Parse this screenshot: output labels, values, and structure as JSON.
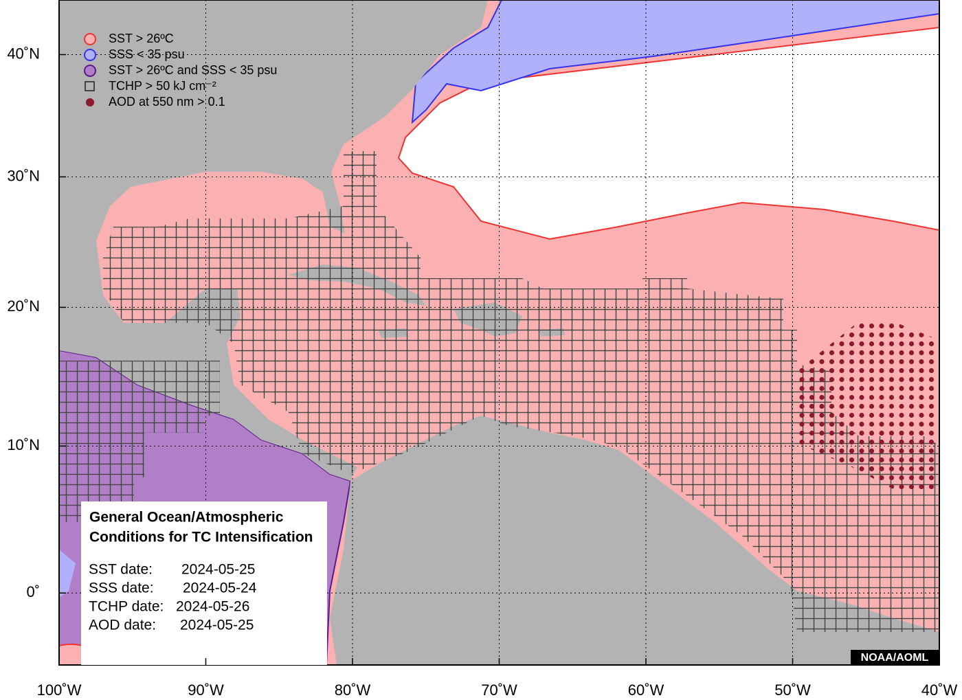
{
  "map": {
    "legend": [
      "SST > 26ºC",
      "SSS < 35 psu",
      "SST > 26ºC and SSS < 35 psu",
      "TCHP > 50 kJ cm⁻²",
      "AOD at 550 nm > 0.1"
    ],
    "info_box": {
      "title_lines": [
        "General Ocean/Atmospheric",
        "Conditions for TC Intensification"
      ],
      "dates": [
        {
          "label": "SST date:",
          "value": "2024-05-25"
        },
        {
          "label": "SSS date:",
          "value": "2024-05-24"
        },
        {
          "label": "TCHP date:",
          "value": "2024-05-26"
        },
        {
          "label": "AOD date:",
          "value": "2024-05-25"
        }
      ]
    },
    "credit": "NOAA/AOML",
    "xlim": [
      -100,
      -40
    ],
    "ylim": [
      -4.7,
      44.7
    ],
    "xticks": [
      {
        "value": -100,
        "label": "100˚W"
      },
      {
        "value": -90,
        "label": "90˚W"
      },
      {
        "value": -80,
        "label": "80˚W"
      },
      {
        "value": -70,
        "label": "70˚W"
      },
      {
        "value": -60,
        "label": "60˚W"
      },
      {
        "value": -50,
        "label": "50˚W"
      },
      {
        "value": -40,
        "label": "40˚W"
      }
    ],
    "yticks": [
      {
        "value": 0,
        "label": "0˚"
      },
      {
        "value": 10,
        "label": "10˚N"
      },
      {
        "value": 20,
        "label": "20˚N"
      },
      {
        "value": 30,
        "label": "30˚N"
      },
      {
        "value": 40,
        "label": "40˚N"
      }
    ]
  }
}
